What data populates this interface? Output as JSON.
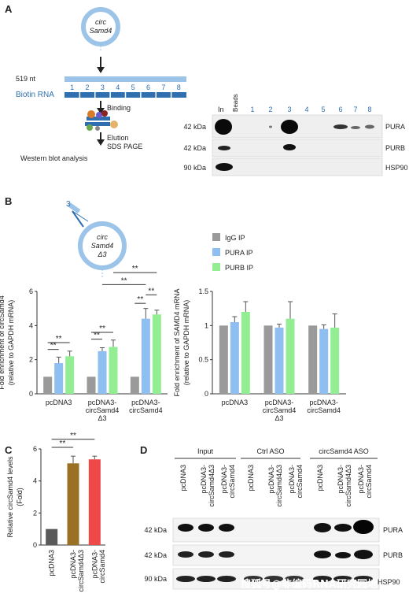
{
  "panelA": {
    "label": "A",
    "circ_line1": "circ",
    "circ_line2": "Samd4",
    "length": "519 nt",
    "biotin_label": "Biotin RNA",
    "segments": [
      "1",
      "2",
      "3",
      "4",
      "5",
      "6",
      "7",
      "8"
    ],
    "step_binding": "Binding",
    "step_elution_1": "Elution",
    "step_elution_2": "SDS PAGE",
    "step_western": "Western blot analysis",
    "lane_in": "In",
    "lane_beads": "Beads",
    "lanes": [
      "1",
      "2",
      "3",
      "4",
      "5",
      "6",
      "7",
      "8"
    ],
    "blots": [
      {
        "kda": "42 kDa",
        "protein": "PURA"
      },
      {
        "kda": "42 kDa",
        "protein": "PURB"
      },
      {
        "kda": "90 kDa",
        "protein": "HSP90"
      }
    ]
  },
  "panelB": {
    "label": "B",
    "circ_segment": "3",
    "circ_line1": "circ",
    "circ_line2": "Samd4",
    "circ_line3": "Δ3",
    "legend": [
      "IgG IP",
      "PURA IP",
      "PURB IP"
    ],
    "colors": {
      "igg": "#9a9a9a",
      "pura": "#8fbef0",
      "purb": "#93ee93"
    },
    "sig": "**"
  },
  "panelC": {
    "label": "C"
  },
  "panelD": {
    "label": "D",
    "groups": [
      "Input",
      "Ctrl ASO",
      "circSamd4 ASO"
    ],
    "lanes": [
      "pcDNA3",
      "pcDNA3-\ncircSamd4Δ3",
      "pcDNA3-\ncircSamd4"
    ],
    "blots": [
      {
        "kda": "42 kDa",
        "protein": "PURA"
      },
      {
        "kda": "42 kDa",
        "protein": "PURB"
      },
      {
        "kda": "90 kDa",
        "protein": "HSP90"
      }
    ]
  },
  "watermark": "搜狐号@非编码RNA研究园地",
  "chart_data": [
    {
      "type": "bar",
      "id": "B-left",
      "ylabel_line1": "Fold enrichment of circSamd4",
      "ylabel_line2": "(relative to GAPDH mRNA)",
      "categories": [
        "pcDNA3",
        "pcDNA3-\ncircSamd4\nΔ3",
        "pcDNA3-\ncircSamd4"
      ],
      "series": [
        {
          "name": "IgG IP",
          "values": [
            1.0,
            1.0,
            1.0
          ],
          "errors": [
            0,
            0,
            0
          ]
        },
        {
          "name": "PURA IP",
          "values": [
            1.8,
            2.5,
            4.4
          ],
          "errors": [
            0.35,
            0.2,
            0.6
          ]
        },
        {
          "name": "PURB IP",
          "values": [
            2.2,
            2.75,
            4.65
          ],
          "errors": [
            0.3,
            0.4,
            0.25
          ]
        }
      ],
      "ylim": [
        0,
        6
      ],
      "yticks": [
        0,
        2,
        4,
        6
      ]
    },
    {
      "type": "bar",
      "id": "B-right",
      "ylabel_line1": "Fold enrichment of SAMD4 mRNA",
      "ylabel_line2": "(relative to GAPDH mRNA)",
      "categories": [
        "pcDNA3",
        "pcDNA3-\ncircSamd4\nΔ3",
        "pcDNA3-\ncircSamd4"
      ],
      "series": [
        {
          "name": "IgG IP",
          "values": [
            1.0,
            1.0,
            1.0
          ],
          "errors": [
            0,
            0,
            0
          ]
        },
        {
          "name": "PURA IP",
          "values": [
            1.05,
            0.97,
            0.95
          ],
          "errors": [
            0.08,
            0.05,
            0.06
          ]
        },
        {
          "name": "PURB IP",
          "values": [
            1.2,
            1.1,
            0.97
          ],
          "errors": [
            0.15,
            0.25,
            0.2
          ]
        }
      ],
      "ylim": [
        0,
        1.5
      ],
      "yticks": [
        0,
        0.5,
        1.0,
        1.5
      ]
    },
    {
      "type": "bar",
      "id": "C",
      "ylabel_line1": "Relative circSamd4 levels",
      "ylabel_line2": "(Fold)",
      "categories": [
        "pcDNA3",
        "pcDNA3-\ncircSamd4Δ3",
        "pcDNA3-\ncircSamd4"
      ],
      "values": [
        1.0,
        5.1,
        5.35
      ],
      "errors": [
        0,
        0.45,
        0.2
      ],
      "colors": [
        "#5a5a5a",
        "#9a7024",
        "#ee4848"
      ],
      "ylim": [
        0,
        6
      ],
      "yticks": [
        0,
        2,
        4,
        6
      ]
    }
  ]
}
